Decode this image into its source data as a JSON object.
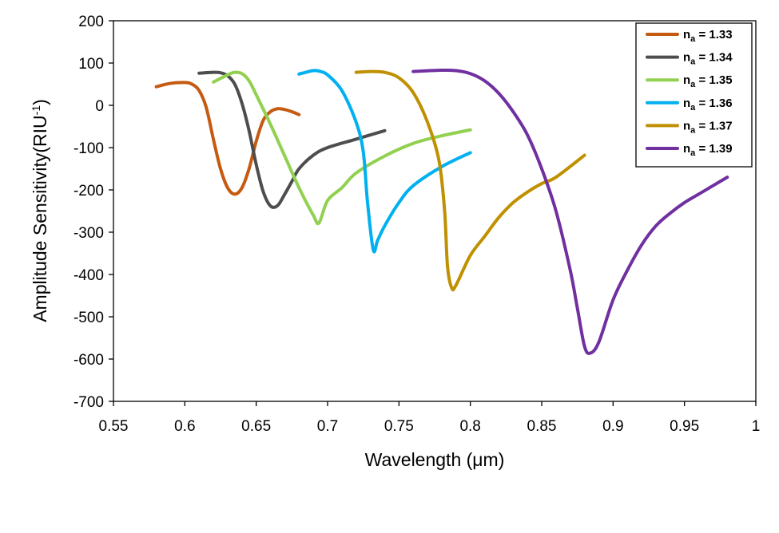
{
  "chart_data": {
    "type": "line",
    "title": "",
    "xlabel": "Wavelength (μm)",
    "ylabel": "Amplitude Sensitivity(RIU",
    "ylabel_sup": "-1",
    "ylabel_end": ")",
    "xlim": [
      0.55,
      1.0
    ],
    "ylim": [
      -700,
      200
    ],
    "grid": false,
    "legend_position": "top-right",
    "x_ticks": [
      "0.55",
      "0.6",
      "0.65",
      "0.7",
      "0.75",
      "0.8",
      "0.85",
      "0.9",
      "0.95",
      "1"
    ],
    "y_ticks": [
      "200",
      "100",
      "0",
      "-100",
      "-200",
      "-300",
      "-400",
      "-500",
      "-600",
      "-700"
    ],
    "series": [
      {
        "name": "na = 1.33",
        "label_base": "n",
        "label_sub": "a",
        "label_value": " = 1.33",
        "color": "#C55A11",
        "x": [
          0.58,
          0.59,
          0.6,
          0.605,
          0.61,
          0.615,
          0.62,
          0.625,
          0.63,
          0.635,
          0.64,
          0.645,
          0.65,
          0.655,
          0.66,
          0.665,
          0.67,
          0.675,
          0.68
        ],
        "y": [
          44,
          52,
          54,
          50,
          35,
          -5,
          -80,
          -150,
          -195,
          -210,
          -195,
          -150,
          -85,
          -35,
          -15,
          -8,
          -10,
          -15,
          -22
        ]
      },
      {
        "name": "na = 1.34",
        "label_base": "n",
        "label_sub": "a",
        "label_value": " = 1.34",
        "color": "#4D4D4D",
        "x": [
          0.61,
          0.62,
          0.625,
          0.63,
          0.635,
          0.64,
          0.645,
          0.65,
          0.655,
          0.66,
          0.665,
          0.67,
          0.675,
          0.68,
          0.69,
          0.7,
          0.72,
          0.74
        ],
        "y": [
          76,
          78,
          77,
          70,
          50,
          5,
          -60,
          -140,
          -205,
          -238,
          -237,
          -210,
          -180,
          -150,
          -118,
          -100,
          -80,
          -60
        ]
      },
      {
        "name": "na = 1.35",
        "label_base": "n",
        "label_sub": "a",
        "label_value": " = 1.35",
        "color": "#92D050",
        "x": [
          0.62,
          0.63,
          0.635,
          0.64,
          0.645,
          0.65,
          0.66,
          0.67,
          0.68,
          0.69,
          0.694,
          0.7,
          0.71,
          0.72,
          0.74,
          0.76,
          0.78,
          0.8
        ],
        "y": [
          55,
          72,
          78,
          75,
          58,
          25,
          -45,
          -120,
          -195,
          -260,
          -278,
          -225,
          -195,
          -160,
          -120,
          -90,
          -72,
          -58
        ]
      },
      {
        "name": "na = 1.36",
        "label_base": "n",
        "label_sub": "a",
        "label_value": " = 1.36",
        "color": "#00B0F0",
        "x": [
          0.68,
          0.69,
          0.695,
          0.7,
          0.71,
          0.72,
          0.725,
          0.728,
          0.732,
          0.735,
          0.74,
          0.75,
          0.76,
          0.78,
          0.8
        ],
        "y": [
          74,
          82,
          80,
          72,
          35,
          -40,
          -110,
          -230,
          -342,
          -320,
          -285,
          -230,
          -190,
          -145,
          -112
        ]
      },
      {
        "name": "na = 1.37",
        "label_base": "n",
        "label_sub": "a",
        "label_value": " = 1.37",
        "color": "#BF9000",
        "x": [
          0.72,
          0.73,
          0.74,
          0.75,
          0.76,
          0.77,
          0.778,
          0.782,
          0.784,
          0.787,
          0.79,
          0.8,
          0.81,
          0.82,
          0.83,
          0.84,
          0.85,
          0.86,
          0.88
        ],
        "y": [
          78,
          80,
          78,
          65,
          30,
          -40,
          -130,
          -250,
          -380,
          -432,
          -425,
          -355,
          -310,
          -265,
          -230,
          -205,
          -185,
          -170,
          -118
        ]
      },
      {
        "name": "na = 1.39",
        "label_base": "n",
        "label_sub": "a",
        "label_value": " = 1.39",
        "color": "#7030A0",
        "x": [
          0.76,
          0.78,
          0.79,
          0.8,
          0.81,
          0.82,
          0.83,
          0.84,
          0.85,
          0.86,
          0.87,
          0.875,
          0.88,
          0.884,
          0.89,
          0.9,
          0.91,
          0.92,
          0.93,
          0.94,
          0.95,
          0.96,
          0.97,
          0.98
        ],
        "y": [
          80,
          83,
          82,
          75,
          58,
          28,
          -15,
          -70,
          -150,
          -250,
          -390,
          -480,
          -570,
          -586,
          -560,
          -460,
          -390,
          -330,
          -285,
          -255,
          -230,
          -210,
          -190,
          -170
        ]
      }
    ]
  }
}
